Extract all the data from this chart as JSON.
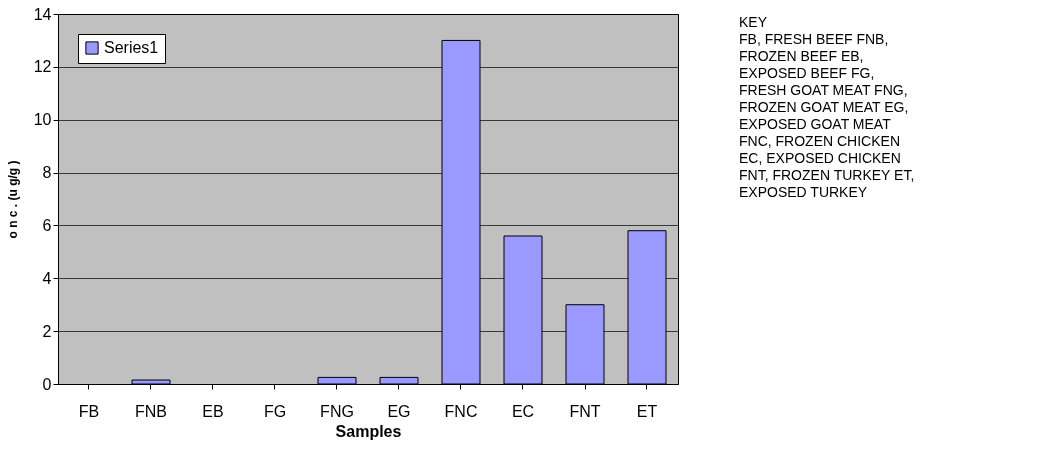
{
  "chart_data": {
    "type": "bar",
    "xlabel": "Samples",
    "ylabel": "o n c . (u g/g )",
    "categories": [
      "FB",
      "FNB",
      "EB",
      "FG",
      "FNG",
      "EG",
      "FNC",
      "EC",
      "FNT",
      "ET"
    ],
    "series": [
      {
        "name": "Series1",
        "color": "#9999ff",
        "values": [
          0,
          0.15,
          0,
          0,
          0.25,
          0.25,
          13.0,
          5.6,
          3.0,
          5.8
        ]
      }
    ],
    "ylim": [
      0,
      14
    ],
    "yticks": [
      0,
      2,
      4,
      6,
      8,
      10,
      12,
      14
    ],
    "grid": "y",
    "legend": "top left",
    "annotations": [
      "KEY",
      "FB, FRESH BEEF FNB,",
      "FROZEN BEEF EB,",
      "EXPOSED BEEF FG,",
      "FRESH GOAT MEAT FNG,",
      "FROZEN GOAT MEAT EG,",
      "EXPOSED GOAT MEAT",
      "FNC, FROZEN CHICKEN",
      "EC, EXPOSED CHICKEN",
      "FNT, FROZEN TURKEY ET,",
      "EXPOSED TURKEY"
    ]
  }
}
